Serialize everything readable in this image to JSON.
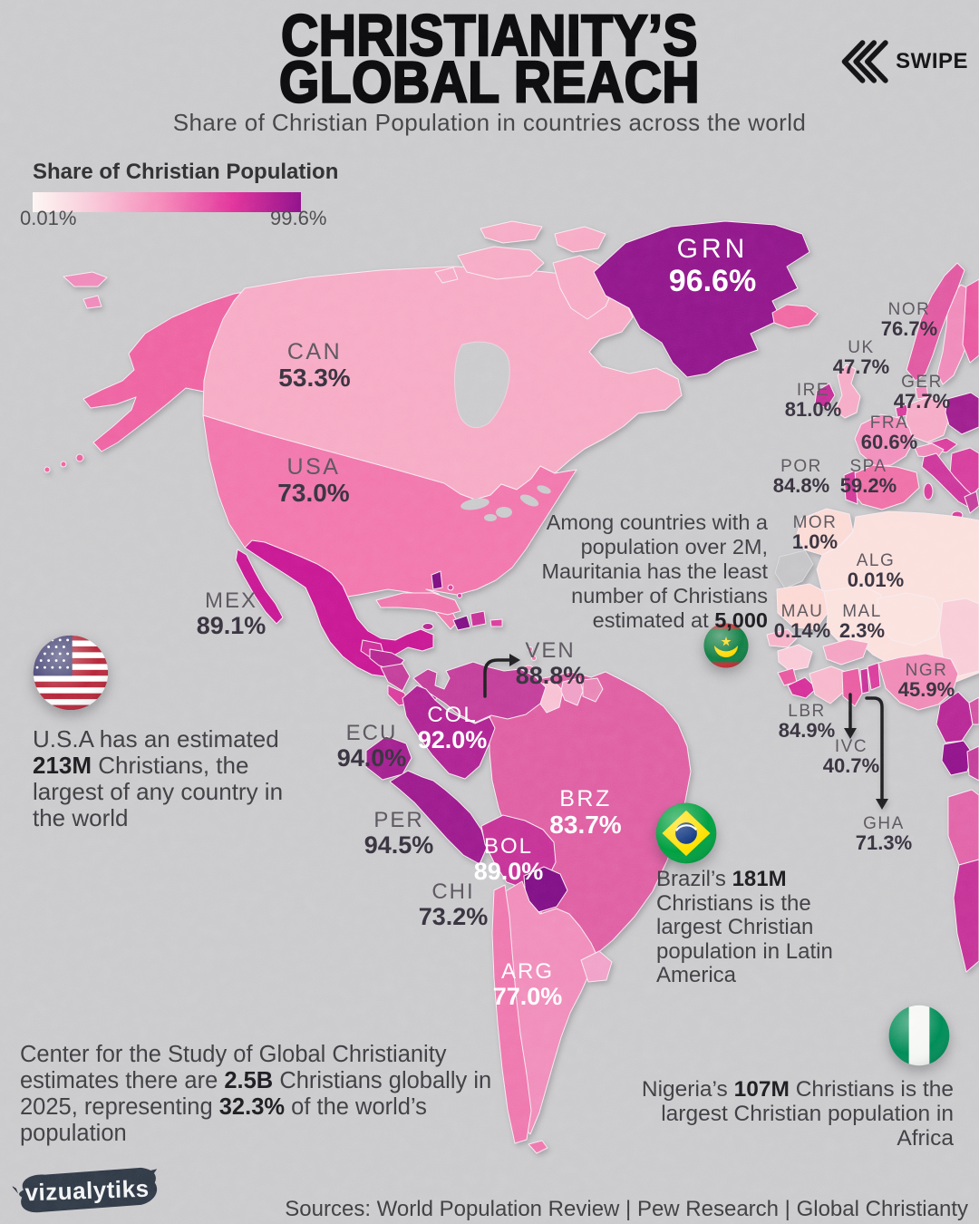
{
  "header": {
    "title_line1": "CHRISTIANITY’S",
    "title_line2": "GLOBAL REACH",
    "subtitle": "Share of Christian Population in countries across the world",
    "swipe_label": "SWIPE"
  },
  "legend": {
    "title": "Share of Christian Population",
    "min": "0.01%",
    "max": "99.6%"
  },
  "chart_data": {
    "type": "heatmap",
    "subtype": "world-choropleth",
    "title": "CHRISTIANITY’S GLOBAL REACH",
    "metric": "Share of Christian Population",
    "scale": {
      "min": "0.01%",
      "max": "99.6%",
      "low_color": "#fdf6f3",
      "mid_color": "#f06ba6",
      "high_color": "#8c0f87"
    },
    "countries": [
      {
        "code": "GRN",
        "share": "96.6%"
      },
      {
        "code": "CAN",
        "share": "53.3%"
      },
      {
        "code": "USA",
        "share": "73.0%"
      },
      {
        "code": "MEX",
        "share": "89.1%"
      },
      {
        "code": "VEN",
        "share": "88.8%"
      },
      {
        "code": "COL",
        "share": "92.0%"
      },
      {
        "code": "ECU",
        "share": "94.0%"
      },
      {
        "code": "PER",
        "share": "94.5%"
      },
      {
        "code": "BOL",
        "share": "89.0%"
      },
      {
        "code": "BRZ",
        "share": "83.7%"
      },
      {
        "code": "CHI",
        "share": "73.2%"
      },
      {
        "code": "ARG",
        "share": "77.0%"
      },
      {
        "code": "NOR",
        "share": "76.7%"
      },
      {
        "code": "UK",
        "share": "47.7%"
      },
      {
        "code": "IRE",
        "share": "81.0%"
      },
      {
        "code": "GER",
        "share": "47.7%"
      },
      {
        "code": "FRA",
        "share": "60.6%"
      },
      {
        "code": "POR",
        "share": "84.8%"
      },
      {
        "code": "SPA",
        "share": "59.2%"
      },
      {
        "code": "MOR",
        "share": "1.0%"
      },
      {
        "code": "ALG",
        "share": "0.01%"
      },
      {
        "code": "MAU",
        "share": "0.14%"
      },
      {
        "code": "MAL",
        "share": "2.3%"
      },
      {
        "code": "NGR",
        "share": "45.9%"
      },
      {
        "code": "LBR",
        "share": "84.9%"
      },
      {
        "code": "IVC",
        "share": "40.7%"
      },
      {
        "code": "GHA",
        "share": "71.3%"
      }
    ]
  },
  "annotations": {
    "mauritania": {
      "icon": "mauritania-flag-icon",
      "p1": "Among countries with a population over 2M, Mauritania has the least number of Christians estimated at ",
      "b1": "5,000"
    },
    "usa": {
      "icon": "usa-flag-icon",
      "p1": "U.S.A has an estimated ",
      "b1": "213M",
      "p2": " Christians, the largest of any country in the world"
    },
    "brazil": {
      "icon": "brazil-flag-icon",
      "p1": "Brazil’s ",
      "b1": "181M",
      "p2": " Christians is the largest Christian population in Latin America"
    },
    "nigeria": {
      "icon": "nigeria-flag-icon",
      "p1": "Nigeria’s ",
      "b1": "107M",
      "p2": " Christians is the largest Christian population in Africa"
    },
    "global": {
      "p1": "Center for the Study of Global Christianity estimates there are ",
      "b1": "2.5B",
      "p2": " Christians globally in 2025, representing ",
      "b2": "32.3%",
      "p3": " of the world’s population"
    }
  },
  "footer": {
    "logo": "vizualytiks",
    "sources": "Sources: World Population Review | Pew Research | Global Christianty"
  }
}
